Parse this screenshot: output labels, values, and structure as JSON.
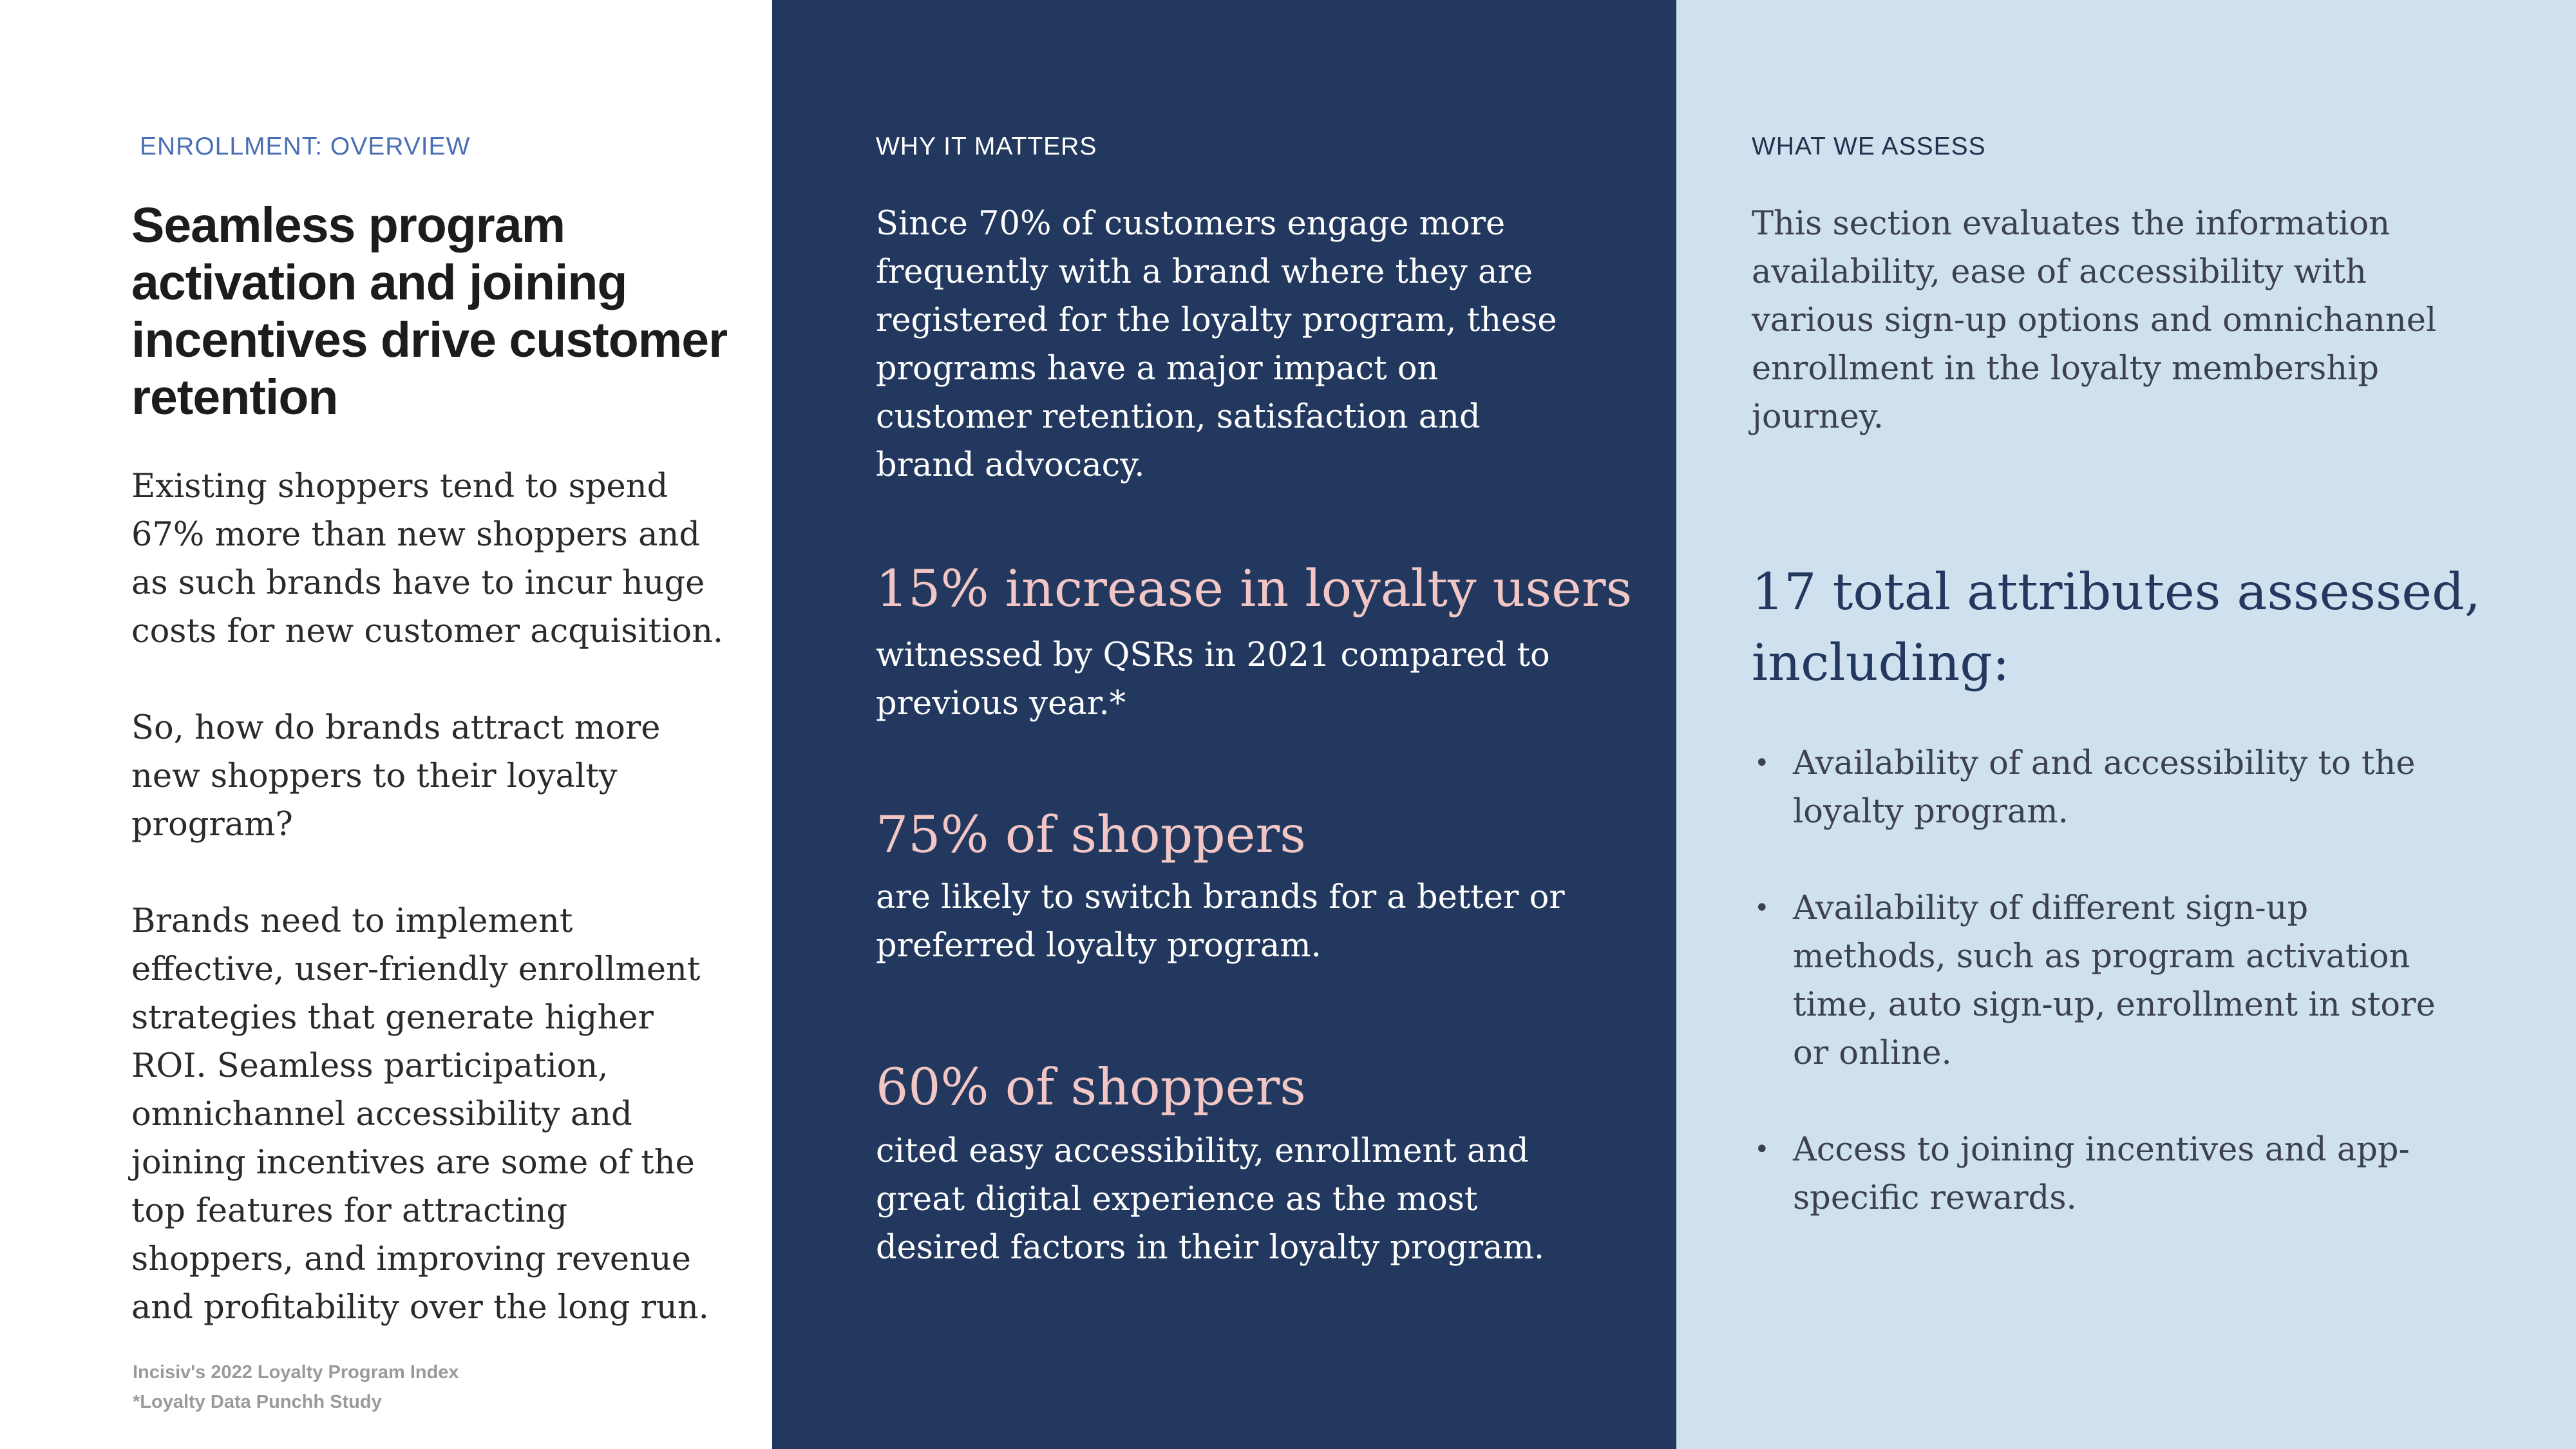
{
  "left": {
    "eyebrow": "ENROLLMENT: OVERVIEW",
    "heading": "Seamless program activation and joining incentives drive customer retention",
    "paragraphs": [
      "Existing shoppers tend to spend 67% more than new shoppers and as such brands have to incur huge costs for new customer acquisition.",
      "So, how do brands attract more new shoppers to their loyalty program?",
      "Brands need to implement effective, user-friendly enrollment strategies that generate higher ROI. Seamless participation, omnichannel accessibility and joining incentives are some of the top features for attracting shoppers, and improving revenue and profitability over the long run."
    ],
    "footer": {
      "line1": "Incisiv's 2022  Loyalty Program  Index",
      "line2": "*Loyalty Data Punchh Study"
    }
  },
  "middle": {
    "eyebrow": "WHY IT MATTERS",
    "intro": "Since 70% of customers engage more frequently with a brand where they are registered for the loyalty program, these programs have a major impact on customer retention, satisfaction and brand advocacy.",
    "stats": [
      {
        "title": "15% increase in loyalty users",
        "desc": "witnessed by QSRs in 2021 compared to previous year.*"
      },
      {
        "title": "75% of shoppers",
        "desc": "are likely to switch brands for a better or preferred loyalty program."
      },
      {
        "title": "60% of shoppers",
        "desc": "cited easy accessibility, enrollment and great digital experience as the most desired factors in their loyalty program."
      }
    ]
  },
  "right": {
    "eyebrow": "WHAT WE ASSESS",
    "intro": "This section evaluates the information availability, ease of accessibility with various sign-up options and omnichannel enrollment in the loyalty membership journey.",
    "heading": "17 total attributes assessed, including:",
    "bullet_symbol": "•",
    "bullets": [
      "Availability of and accessibility to the loyalty program.",
      "Availability of different sign-up methods, such as program activation time, auto sign-up, enrollment in store or online.",
      "Access to joining incentives and app-specific rewards."
    ]
  },
  "colors": {
    "middle_bg": "#22385e",
    "right_bg": "#cfe1ee",
    "accent_blue": "#4a6fb5",
    "stat_pink": "#f2c6c4"
  }
}
